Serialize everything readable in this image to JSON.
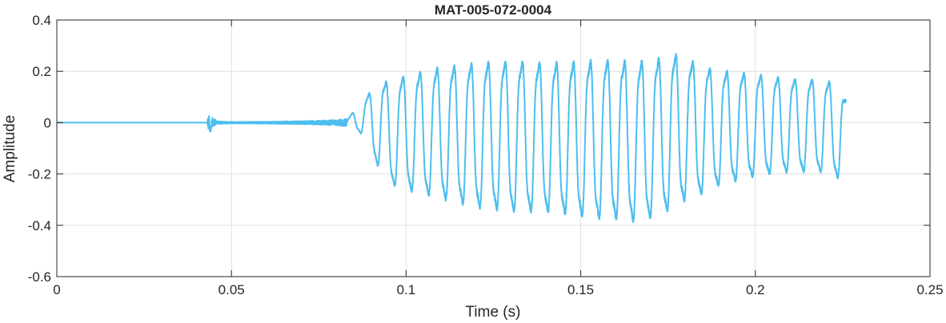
{
  "chart_data": {
    "type": "line",
    "title": "MAT-005-072-0004",
    "xlabel": "Time (s)",
    "ylabel": "Amplitude",
    "xlim": [
      0,
      0.25
    ],
    "ylim": [
      -0.6,
      0.4
    ],
    "xticks": [
      0,
      0.05,
      0.1,
      0.15,
      0.2,
      0.25
    ],
    "xtick_labels": [
      "0",
      "0.05",
      "0.1",
      "0.15",
      "0.2",
      "0.25"
    ],
    "yticks": [
      -0.6,
      -0.4,
      -0.2,
      0,
      0.2,
      0.4
    ],
    "ytick_labels": [
      "-0.6",
      "-0.4",
      "-0.2",
      "0",
      "0.2",
      "0.4"
    ],
    "grid": true,
    "line_color": "#4DBEEE",
    "series": [
      {
        "x": [
          0,
          0.043,
          0.0435,
          0.044,
          0.0445,
          0.046,
          0.05,
          0.06,
          0.07,
          0.08,
          0.083,
          0.085,
          0.0875,
          0.09,
          0.0925,
          0.095,
          0.1,
          0.105,
          0.11,
          0.115,
          0.12,
          0.125,
          0.13,
          0.135,
          0.14,
          0.145,
          0.15,
          0.155,
          0.16,
          0.165,
          0.17,
          0.175,
          0.178,
          0.18,
          0.185,
          0.19,
          0.195,
          0.2,
          0.205,
          0.21,
          0.215,
          0.22,
          0.2245,
          0.226
        ],
        "y": [
          0,
          0,
          0.045,
          -0.035,
          0.02,
          0.005,
          0.003,
          0.004,
          0.006,
          0.01,
          0.015,
          0.05,
          0.1,
          0.15,
          0.2,
          0.2,
          0.23,
          0.25,
          0.27,
          0.28,
          0.29,
          0.3,
          0.3,
          0.3,
          0.29,
          0.3,
          0.3,
          0.31,
          0.31,
          0.3,
          0.31,
          0.32,
          0.33,
          0.31,
          0.27,
          0.25,
          0.24,
          0.23,
          0.22,
          0.21,
          0.21,
          0.2,
          0.19,
          0.12
        ],
        "min_envelope": [
          0,
          0,
          -0.03,
          -0.035,
          -0.015,
          -0.005,
          -0.003,
          -0.004,
          -0.006,
          -0.01,
          -0.015,
          -0.03,
          -0.06,
          -0.15,
          -0.22,
          -0.28,
          -0.31,
          -0.33,
          -0.35,
          -0.37,
          -0.39,
          -0.4,
          -0.41,
          -0.41,
          -0.41,
          -0.42,
          -0.43,
          -0.44,
          -0.44,
          -0.45,
          -0.44,
          -0.41,
          -0.38,
          -0.36,
          -0.33,
          -0.29,
          -0.27,
          -0.25,
          -0.24,
          -0.23,
          -0.23,
          -0.23,
          -0.26,
          -0.27
        ]
      }
    ]
  }
}
